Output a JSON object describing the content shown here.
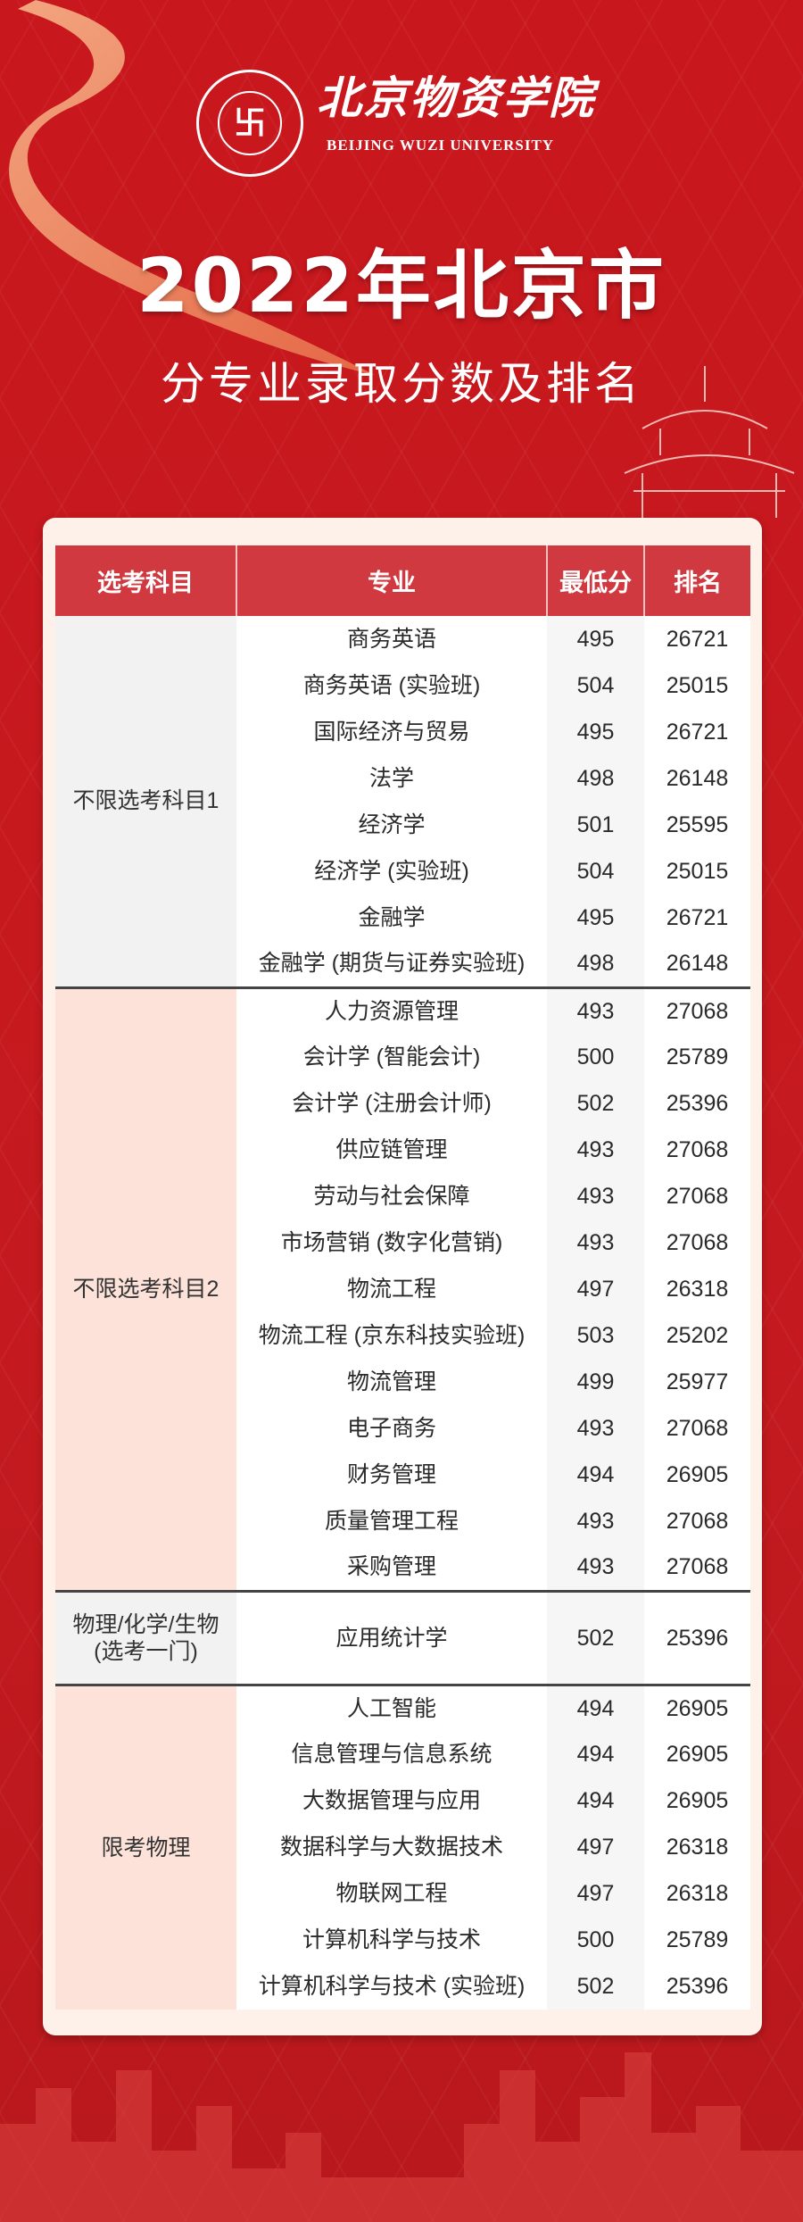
{
  "header": {
    "logo_seal_text": "北京物资学院",
    "logo_cn": "北京物资学院",
    "logo_en": "BEIJING WUZI UNIVERSITY",
    "title": "2022年北京市",
    "subtitle": "分专业录取分数及排名"
  },
  "table": {
    "columns": [
      "选考科目",
      "专业",
      "最低分",
      "排名"
    ],
    "groups": [
      {
        "subject": "不限选考科目1",
        "rows": [
          [
            "商务英语",
            "495",
            "26721"
          ],
          [
            "商务英语 (实验班)",
            "504",
            "25015"
          ],
          [
            "国际经济与贸易",
            "495",
            "26721"
          ],
          [
            "法学",
            "498",
            "26148"
          ],
          [
            "经济学",
            "501",
            "25595"
          ],
          [
            "经济学 (实验班)",
            "504",
            "25015"
          ],
          [
            "金融学",
            "495",
            "26721"
          ],
          [
            "金融学 (期货与证券实验班)",
            "498",
            "26148"
          ]
        ]
      },
      {
        "subject": "不限选考科目2",
        "rows": [
          [
            "人力资源管理",
            "493",
            "27068"
          ],
          [
            "会计学 (智能会计)",
            "500",
            "25789"
          ],
          [
            "会计学 (注册会计师)",
            "502",
            "25396"
          ],
          [
            "供应链管理",
            "493",
            "27068"
          ],
          [
            "劳动与社会保障",
            "493",
            "27068"
          ],
          [
            "市场营销 (数字化营销)",
            "493",
            "27068"
          ],
          [
            "物流工程",
            "497",
            "26318"
          ],
          [
            "物流工程 (京东科技实验班)",
            "503",
            "25202"
          ],
          [
            "物流管理",
            "499",
            "25977"
          ],
          [
            "电子商务",
            "493",
            "27068"
          ],
          [
            "财务管理",
            "494",
            "26905"
          ],
          [
            "质量管理工程",
            "493",
            "27068"
          ],
          [
            "采购管理",
            "493",
            "27068"
          ]
        ]
      },
      {
        "subject": "物理/化学/生物\n(选考一门)",
        "rows": [
          [
            "应用统计学",
            "502",
            "25396"
          ]
        ]
      },
      {
        "subject": "限考物理",
        "rows": [
          [
            "人工智能",
            "494",
            "26905"
          ],
          [
            "信息管理与信息系统",
            "494",
            "26905"
          ],
          [
            "大数据管理与应用",
            "494",
            "26905"
          ],
          [
            "数据科学与大数据技术",
            "497",
            "26318"
          ],
          [
            "物联网工程",
            "497",
            "26318"
          ],
          [
            "计算机科学与技术",
            "500",
            "25789"
          ],
          [
            "计算机科学与技术 (实验班)",
            "502",
            "25396"
          ]
        ]
      }
    ]
  },
  "colors": {
    "background": "#c41a1f",
    "header_row": "#d0393f",
    "group_gray": "#f2f2f2",
    "group_pink": "#fde2d9"
  }
}
